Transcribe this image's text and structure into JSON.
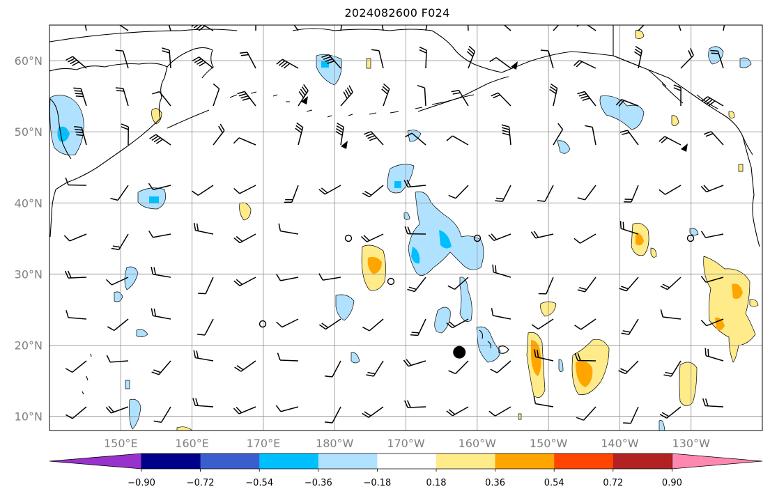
{
  "title": "2024082600 F024",
  "map": {
    "lat_labels": [
      "60°N",
      "50°N",
      "40°N",
      "30°N",
      "20°N",
      "10°N"
    ],
    "lat_values": [
      60,
      50,
      40,
      30,
      20,
      10
    ],
    "lon_labels": [
      "150°E",
      "160°E",
      "170°E",
      "180°W",
      "170°W",
      "160°W",
      "150°W",
      "140°W",
      "130°W"
    ],
    "lon_values": [
      150,
      160,
      170,
      180,
      190,
      200,
      210,
      220,
      230
    ],
    "extent": {
      "lon_min": 140,
      "lon_max": 240,
      "lat_min": 8,
      "lat_max": 65
    },
    "gridlines": true,
    "storm_marker": {
      "lon": 197.5,
      "lat": 19
    }
  },
  "colorbar": {
    "ticks": [
      "−0.90",
      "−0.72",
      "−0.54",
      "−0.36",
      "−0.18",
      "0.18",
      "0.36",
      "0.54",
      "0.72",
      "0.90"
    ],
    "colors": [
      "#9932cc",
      "#00008b",
      "#3a5fcd",
      "#00bfff",
      "#b0e2ff",
      "#ffffff",
      "#ffeb8a",
      "#ffa500",
      "#ff4500",
      "#b22222",
      "#ff88b0"
    ]
  }
}
